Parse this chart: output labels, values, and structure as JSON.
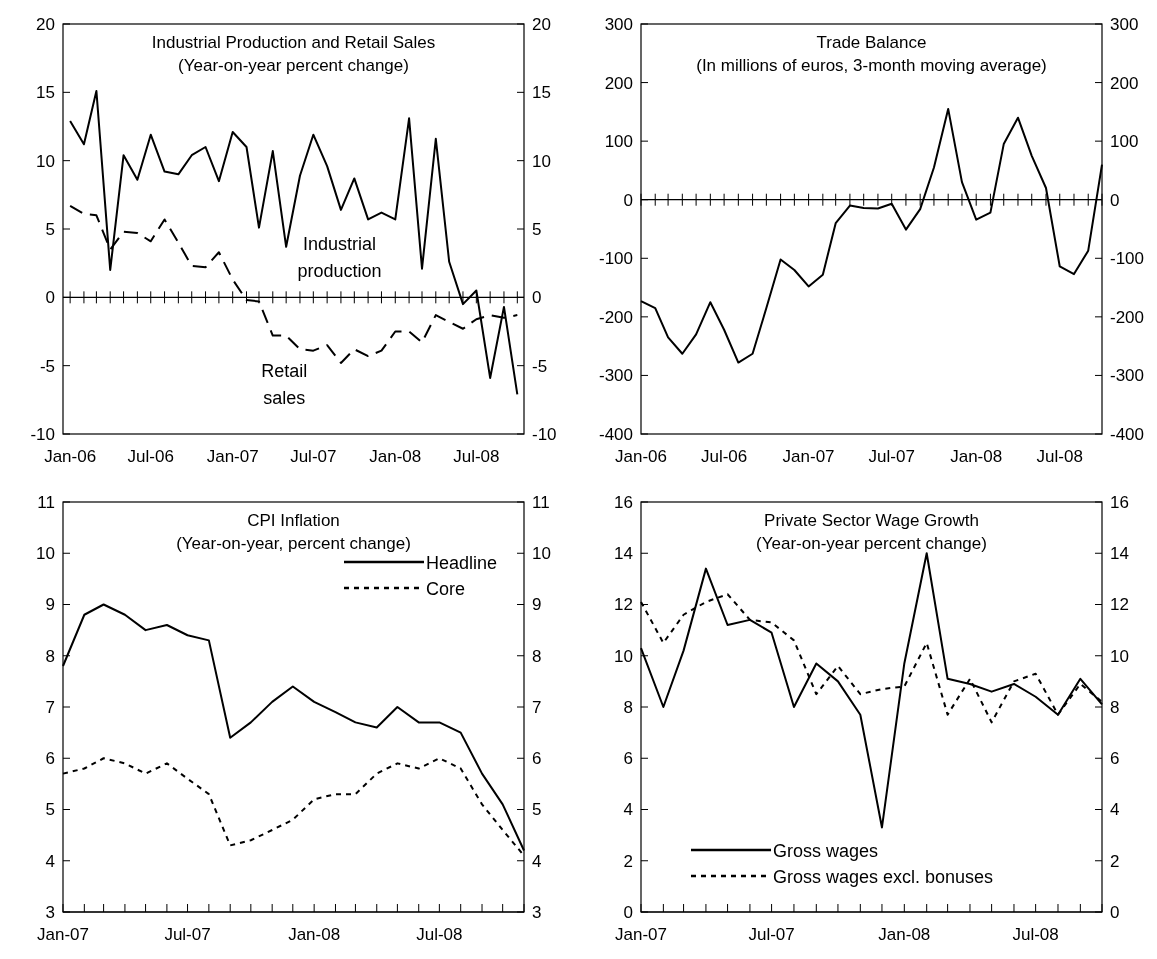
{
  "chart_data": [
    {
      "type": "line",
      "title": "Industrial Production and Retail Sales",
      "subtitle": "(Year-on-year percent change)",
      "legend": false,
      "x": [
        "2006-01",
        "2006-02",
        "2006-03",
        "2006-04",
        "2006-05",
        "2006-06",
        "2006-07",
        "2006-08",
        "2006-09",
        "2006-10",
        "2006-11",
        "2006-12",
        "2007-01",
        "2007-02",
        "2007-03",
        "2007-04",
        "2007-05",
        "2007-06",
        "2007-07",
        "2007-08",
        "2007-09",
        "2007-10",
        "2007-11",
        "2007-12",
        "2008-01",
        "2008-02",
        "2008-03",
        "2008-04",
        "2008-05",
        "2008-06",
        "2008-07",
        "2008-08",
        "2008-09",
        "2008-10"
      ],
      "xlim": [
        "2005-12-16",
        "2008-10-16"
      ],
      "xticks": [
        {
          "value": "2006-01",
          "label": "Jan-06"
        },
        {
          "value": "2006-02",
          "label": null
        },
        {
          "value": "2006-03",
          "label": null
        },
        {
          "value": "2006-04",
          "label": null
        },
        {
          "value": "2006-05",
          "label": null
        },
        {
          "value": "2006-06",
          "label": null
        },
        {
          "value": "2006-07",
          "label": "Jul-06"
        },
        {
          "value": "2006-08",
          "label": null
        },
        {
          "value": "2006-09",
          "label": null
        },
        {
          "value": "2006-10",
          "label": null
        },
        {
          "value": "2006-11",
          "label": null
        },
        {
          "value": "2006-12",
          "label": null
        },
        {
          "value": "2007-01",
          "label": "Jan-07"
        },
        {
          "value": "2007-02",
          "label": null
        },
        {
          "value": "2007-03",
          "label": null
        },
        {
          "value": "2007-04",
          "label": null
        },
        {
          "value": "2007-05",
          "label": null
        },
        {
          "value": "2007-06",
          "label": null
        },
        {
          "value": "2007-07",
          "label": "Jul-07"
        },
        {
          "value": "2007-08",
          "label": null
        },
        {
          "value": "2007-09",
          "label": null
        },
        {
          "value": "2007-10",
          "label": null
        },
        {
          "value": "2007-11",
          "label": null
        },
        {
          "value": "2007-12",
          "label": null
        },
        {
          "value": "2008-01",
          "label": "Jan-08"
        },
        {
          "value": "2008-02",
          "label": null
        },
        {
          "value": "2008-03",
          "label": null
        },
        {
          "value": "2008-04",
          "label": null
        },
        {
          "value": "2008-05",
          "label": null
        },
        {
          "value": "2008-06",
          "label": null
        },
        {
          "value": "2008-07",
          "label": "Jul-08"
        },
        {
          "value": "2008-08",
          "label": null
        },
        {
          "value": "2008-09",
          "label": null
        },
        {
          "value": "2008-10",
          "label": null
        }
      ],
      "ylim": [
        -10,
        20
      ],
      "yticks": [
        -10,
        -5,
        0,
        5,
        10,
        15,
        20
      ],
      "y2lim": [
        -10,
        20
      ],
      "y2ticks": [
        -10,
        -5,
        0,
        5,
        10,
        15,
        20
      ],
      "series": [
        {
          "name": "Industrial production",
          "color": "#000000",
          "line_style": "solid",
          "values": [
            12.9,
            11.2,
            15.1,
            2.0,
            10.4,
            8.6,
            11.9,
            9.2,
            9.0,
            10.4,
            11.0,
            8.5,
            12.1,
            11.0,
            5.1,
            10.7,
            3.7,
            8.9,
            11.9,
            9.6,
            6.4,
            8.7,
            5.7,
            6.2,
            5.7,
            13.1,
            2.1,
            11.6,
            2.6,
            -0.5,
            0.5,
            -5.9,
            -0.7,
            -7.1
          ]
        },
        {
          "name": "Retail sales",
          "color": "#000000",
          "line_style": "dashed",
          "values": [
            6.7,
            6.1,
            6.0,
            3.5,
            4.8,
            4.7,
            4.1,
            5.7,
            4.0,
            2.3,
            2.2,
            3.3,
            1.3,
            -0.2,
            -0.3,
            -2.8,
            -2.8,
            -3.8,
            -3.9,
            -3.5,
            -4.8,
            -3.8,
            -4.3,
            -3.9,
            -2.5,
            -2.5,
            -3.3,
            -1.3,
            -1.8,
            -2.3,
            -1.6,
            -1.3,
            -1.5,
            -1.3
          ]
        }
      ]
    },
    {
      "type": "line",
      "title": "Trade Balance",
      "subtitle": "(In millions of euros, 3-month moving average)",
      "legend": false,
      "x": [
        "2006-01",
        "2006-02",
        "2006-03",
        "2006-04",
        "2006-05",
        "2006-06",
        "2006-07",
        "2006-08",
        "2006-09",
        "2006-10",
        "2006-11",
        "2006-12",
        "2007-01",
        "2007-02",
        "2007-03",
        "2007-04",
        "2007-05",
        "2007-06",
        "2007-07",
        "2007-08",
        "2007-09",
        "2007-10",
        "2007-11",
        "2007-12",
        "2008-01",
        "2008-02",
        "2008-03",
        "2008-04",
        "2008-05",
        "2008-06",
        "2008-07",
        "2008-08",
        "2008-09",
        "2008-10"
      ],
      "xlim": [
        "2006-01",
        "2008-10"
      ],
      "xticks": [
        {
          "value": "2006-01",
          "label": "Jan-06"
        },
        {
          "value": "2006-02",
          "label": null
        },
        {
          "value": "2006-03",
          "label": null
        },
        {
          "value": "2006-04",
          "label": null
        },
        {
          "value": "2006-05",
          "label": null
        },
        {
          "value": "2006-06",
          "label": null
        },
        {
          "value": "2006-07",
          "label": "Jul-06"
        },
        {
          "value": "2006-08",
          "label": null
        },
        {
          "value": "2006-09",
          "label": null
        },
        {
          "value": "2006-10",
          "label": null
        },
        {
          "value": "2006-11",
          "label": null
        },
        {
          "value": "2006-12",
          "label": null
        },
        {
          "value": "2007-01",
          "label": "Jan-07"
        },
        {
          "value": "2007-02",
          "label": null
        },
        {
          "value": "2007-03",
          "label": null
        },
        {
          "value": "2007-04",
          "label": null
        },
        {
          "value": "2007-05",
          "label": null
        },
        {
          "value": "2007-06",
          "label": null
        },
        {
          "value": "2007-07",
          "label": "Jul-07"
        },
        {
          "value": "2007-08",
          "label": null
        },
        {
          "value": "2007-09",
          "label": null
        },
        {
          "value": "2007-10",
          "label": null
        },
        {
          "value": "2007-11",
          "label": null
        },
        {
          "value": "2007-12",
          "label": null
        },
        {
          "value": "2008-01",
          "label": "Jan-08"
        },
        {
          "value": "2008-02",
          "label": null
        },
        {
          "value": "2008-03",
          "label": null
        },
        {
          "value": "2008-04",
          "label": null
        },
        {
          "value": "2008-05",
          "label": null
        },
        {
          "value": "2008-06",
          "label": null
        },
        {
          "value": "2008-07",
          "label": "Jul-08"
        },
        {
          "value": "2008-08",
          "label": null
        },
        {
          "value": "2008-09",
          "label": null
        },
        {
          "value": "2008-10",
          "label": null
        }
      ],
      "ylim": [
        -400,
        300
      ],
      "yticks": [
        -400,
        -300,
        -200,
        -100,
        0,
        100,
        200,
        300
      ],
      "y2lim": [
        -400,
        300
      ],
      "y2ticks": [
        -400,
        -300,
        -200,
        -100,
        0,
        100,
        200,
        300
      ],
      "series": [
        {
          "color": "#000000",
          "line_style": "solid",
          "values": [
            -173,
            -185,
            -235,
            -263,
            -230,
            -175,
            -222,
            -278,
            -263,
            -185,
            -102,
            -120,
            -148,
            -128,
            -40,
            -10,
            -14,
            -15,
            -7,
            -51,
            -16,
            55,
            155,
            30,
            -34,
            -22,
            95,
            140,
            75,
            20,
            -114,
            -127,
            -87,
            60
          ]
        }
      ]
    },
    {
      "type": "line",
      "title": "CPI Inflation",
      "subtitle": "(Year-on-year, percent change)",
      "legend": "top right",
      "x": [
        "2007-01",
        "2007-02",
        "2007-03",
        "2007-04",
        "2007-05",
        "2007-06",
        "2007-07",
        "2007-08",
        "2007-09",
        "2007-10",
        "2007-11",
        "2007-12",
        "2008-01",
        "2008-02",
        "2008-03",
        "2008-04",
        "2008-05",
        "2008-06",
        "2008-07",
        "2008-08",
        "2008-09",
        "2008-10",
        "2008-11"
      ],
      "xlim": [
        "2007-01",
        "2008-11"
      ],
      "xticks": [
        {
          "value": "2007-01",
          "label": "Jan-07"
        },
        {
          "value": "2007-02",
          "label": null
        },
        {
          "value": "2007-03",
          "label": null
        },
        {
          "value": "2007-04",
          "label": null
        },
        {
          "value": "2007-05",
          "label": null
        },
        {
          "value": "2007-06",
          "label": null
        },
        {
          "value": "2007-07",
          "label": "Jul-07"
        },
        {
          "value": "2007-08",
          "label": null
        },
        {
          "value": "2007-09",
          "label": null
        },
        {
          "value": "2007-10",
          "label": null
        },
        {
          "value": "2007-11",
          "label": null
        },
        {
          "value": "2007-12",
          "label": null
        },
        {
          "value": "2008-01",
          "label": "Jan-08"
        },
        {
          "value": "2008-02",
          "label": null
        },
        {
          "value": "2008-03",
          "label": null
        },
        {
          "value": "2008-04",
          "label": null
        },
        {
          "value": "2008-05",
          "label": null
        },
        {
          "value": "2008-06",
          "label": null
        },
        {
          "value": "2008-07",
          "label": "Jul-08"
        },
        {
          "value": "2008-08",
          "label": null
        },
        {
          "value": "2008-09",
          "label": null
        },
        {
          "value": "2008-10",
          "label": null
        },
        {
          "value": "2008-11",
          "label": null
        }
      ],
      "ylim": [
        3,
        11
      ],
      "yticks": [
        3,
        4,
        5,
        6,
        7,
        8,
        9,
        10,
        11
      ],
      "y2lim": [
        3,
        11
      ],
      "y2ticks": [
        3,
        4,
        5,
        6,
        7,
        8,
        9,
        10,
        11
      ],
      "series": [
        {
          "name": "Headline",
          "color": "#000000",
          "line_style": "solid",
          "values": [
            7.8,
            8.8,
            9.0,
            8.8,
            8.5,
            8.6,
            8.4,
            8.3,
            6.4,
            6.7,
            7.1,
            7.4,
            7.1,
            6.9,
            6.7,
            6.6,
            7.0,
            6.7,
            6.7,
            6.5,
            5.7,
            5.1,
            4.2
          ]
        },
        {
          "name": "Core",
          "color": "#000000",
          "line_style": "dotted",
          "values": [
            5.7,
            5.8,
            6.0,
            5.9,
            5.7,
            5.9,
            5.6,
            5.3,
            4.3,
            4.4,
            4.6,
            4.8,
            5.2,
            5.3,
            5.3,
            5.7,
            5.9,
            5.8,
            6.0,
            5.8,
            5.1,
            4.6,
            4.1
          ]
        }
      ]
    },
    {
      "type": "line",
      "title": "Private Sector Wage Growth",
      "subtitle": "(Year-on-year percent change)",
      "legend": "bottom left",
      "x": [
        "2007-01",
        "2007-02",
        "2007-03",
        "2007-04",
        "2007-05",
        "2007-06",
        "2007-07",
        "2007-08",
        "2007-09",
        "2007-10",
        "2007-11",
        "2007-12",
        "2008-01",
        "2008-02",
        "2008-03",
        "2008-04",
        "2008-05",
        "2008-06",
        "2008-07",
        "2008-08",
        "2008-09",
        "2008-10"
      ],
      "xlim": [
        "2007-01",
        "2008-10"
      ],
      "xticks": [
        {
          "value": "2007-01",
          "label": "Jan-07"
        },
        {
          "value": "2007-02",
          "label": null
        },
        {
          "value": "2007-03",
          "label": null
        },
        {
          "value": "2007-04",
          "label": null
        },
        {
          "value": "2007-05",
          "label": null
        },
        {
          "value": "2007-06",
          "label": null
        },
        {
          "value": "2007-07",
          "label": "Jul-07"
        },
        {
          "value": "2007-08",
          "label": null
        },
        {
          "value": "2007-09",
          "label": null
        },
        {
          "value": "2007-10",
          "label": null
        },
        {
          "value": "2007-11",
          "label": null
        },
        {
          "value": "2007-12",
          "label": null
        },
        {
          "value": "2008-01",
          "label": "Jan-08"
        },
        {
          "value": "2008-02",
          "label": null
        },
        {
          "value": "2008-03",
          "label": null
        },
        {
          "value": "2008-04",
          "label": null
        },
        {
          "value": "2008-05",
          "label": null
        },
        {
          "value": "2008-06",
          "label": null
        },
        {
          "value": "2008-07",
          "label": "Jul-08"
        },
        {
          "value": "2008-08",
          "label": null
        },
        {
          "value": "2008-09",
          "label": null
        },
        {
          "value": "2008-10",
          "label": null
        }
      ],
      "ylim": [
        0,
        16
      ],
      "yticks": [
        0,
        2,
        4,
        6,
        8,
        10,
        12,
        14,
        16
      ],
      "y2lim": [
        0,
        16
      ],
      "y2ticks": [
        0,
        2,
        4,
        6,
        8,
        10,
        12,
        14,
        16
      ],
      "series": [
        {
          "name": "Gross wages",
          "color": "#000000",
          "line_style": "solid",
          "values": [
            10.3,
            8.0,
            10.2,
            13.4,
            11.2,
            11.4,
            10.9,
            8.0,
            9.7,
            9.0,
            7.7,
            3.3,
            9.7,
            14.0,
            9.1,
            8.9,
            8.6,
            8.9,
            8.4,
            7.7,
            9.1,
            8.1
          ]
        },
        {
          "name": "Gross wages excl. bonuses",
          "color": "#000000",
          "line_style": "dotted",
          "values": [
            12.1,
            10.5,
            11.6,
            12.1,
            12.4,
            11.4,
            11.3,
            10.6,
            8.5,
            9.6,
            8.5,
            8.7,
            8.8,
            10.5,
            7.7,
            9.1,
            7.4,
            9.0,
            9.3,
            7.7,
            8.9,
            8.2
          ]
        }
      ]
    }
  ]
}
